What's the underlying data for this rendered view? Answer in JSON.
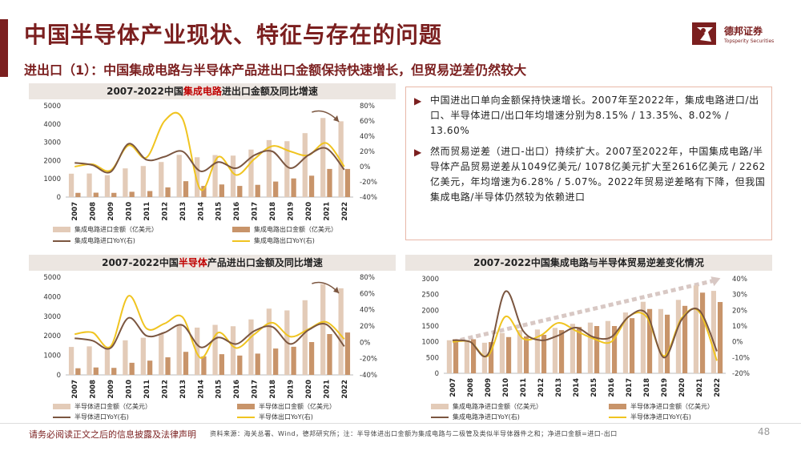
{
  "header": {
    "title": "中国半导体产业现状、特征与存在的问题",
    "subtitle": "进出口（1）：中国集成电路与半导体产品进出口金额保持快速增长，但贸易逆差仍然较大"
  },
  "logo": {
    "cn": "德邦证券",
    "en": "Topsperity Securities"
  },
  "colors": {
    "brand": "#7b1f1f",
    "import_bar": "#e3cbb8",
    "export_bar": "#c8946a",
    "import_line": "#7b5640",
    "export_line": "#f0c420",
    "title_bg": "#ece6e1"
  },
  "text_box": {
    "p1": "中国进出口单向金额保持快速增长。2007年至2022年，集成电路进口/出口、半导体进口/出口年均增速分别为8.15% / 13.35%、8.02% / 13.60%",
    "p2": "然而贸易逆差（进口-出口）持续扩大。2007至2022年，中国集成电路/半导体产品贸易逆差从1049亿美元/ 1078亿美元扩大至2616亿美元 / 2262亿美元，年均增速为6.28% / 5.07%。2022年贸易逆差略有下降，但我国集成电路/半导体仍然较为依赖进口"
  },
  "footer": {
    "disclaimer": "请务必阅读正文之后的信息披露及法律声明",
    "source": "资料来源：海关总署、Wind，德邦研究所；注：半导体进出口金额为集成电路与二极管及类似半导体器件之和；净进口金额=进口-出口",
    "page": "48"
  },
  "chart_data": [
    {
      "type": "bar",
      "title_pre": "2007-2022中国",
      "title_hl": "集成电路",
      "title_post": "进出口金额及同比增速",
      "categories": [
        "2007",
        "2008",
        "2009",
        "2010",
        "2011",
        "2012",
        "2013",
        "2014",
        "2015",
        "2016",
        "2017",
        "2018",
        "2019",
        "2020",
        "2021",
        "2022"
      ],
      "ylim": [
        0,
        5000
      ],
      "yticks": [
        "0",
        "1000",
        "2000",
        "3000",
        "4000",
        "5000"
      ],
      "y2lim": [
        -40,
        80
      ],
      "y2ticks": [
        "-40%",
        "-20%",
        "0%",
        "20%",
        "40%",
        "60%",
        "80%"
      ],
      "series": [
        {
          "name": "集成电路进口金额（亿美元）",
          "kind": "bar",
          "values": [
            1280,
            1290,
            1200,
            1570,
            1700,
            1920,
            2310,
            2180,
            2300,
            2270,
            2600,
            3120,
            3060,
            3500,
            4330,
            4150
          ]
        },
        {
          "name": "集成电路出口金额（亿美元）",
          "kind": "bar",
          "values": [
            230,
            240,
            230,
            290,
            330,
            530,
            870,
            610,
            690,
            610,
            670,
            850,
            1020,
            1170,
            1540,
            1540
          ]
        },
        {
          "name": "集成电路进口YoY(右)",
          "kind": "line",
          "axis": "right",
          "values": [
            5,
            2,
            -7,
            30,
            9,
            13,
            20,
            -6,
            6,
            -2,
            15,
            20,
            -2,
            15,
            24,
            -4
          ]
        },
        {
          "name": "集成电路出口YoY(右)",
          "kind": "line",
          "axis": "right",
          "values": [
            0,
            3,
            -5,
            28,
            12,
            60,
            63,
            -30,
            13,
            -11,
            10,
            27,
            20,
            15,
            31,
            0
          ]
        }
      ]
    },
    {
      "type": "bar",
      "title_pre": "2007-2022中国",
      "title_hl": "半导体",
      "title_post": "产品进出口金额及同比增速",
      "categories": [
        "2007",
        "2008",
        "2009",
        "2010",
        "2011",
        "2012",
        "2013",
        "2014",
        "2015",
        "2016",
        "2017",
        "2018",
        "2019",
        "2020",
        "2021",
        "2022"
      ],
      "ylim": [
        0,
        5000
      ],
      "yticks": [
        "0",
        "1000",
        "2000",
        "3000",
        "4000",
        "5000"
      ],
      "y2lim": [
        -40,
        80
      ],
      "y2ticks": [
        "-40%",
        "-20%",
        "0%",
        "20%",
        "40%",
        "60%",
        "80%"
      ],
      "series": [
        {
          "name": "半导体进口金额（亿美元）",
          "kind": "bar",
          "values": [
            1430,
            1460,
            1350,
            1770,
            1900,
            2120,
            2550,
            2420,
            2560,
            2490,
            2840,
            3390,
            3300,
            3820,
            4650,
            4430
          ]
        },
        {
          "name": "半导体出口金额（亿美元）",
          "kind": "bar",
          "values": [
            340,
            380,
            360,
            620,
            730,
            900,
            1180,
            950,
            1060,
            990,
            1090,
            1350,
            1440,
            1680,
            2090,
            2170
          ]
        },
        {
          "name": "半导体进口YoY(右)",
          "kind": "line",
          "axis": "right",
          "values": [
            5,
            2,
            -7,
            30,
            8,
            12,
            21,
            -6,
            6,
            -2,
            14,
            19,
            -2,
            15,
            22,
            -5
          ]
        },
        {
          "name": "半导体出口YoY(右)",
          "kind": "line",
          "axis": "right",
          "values": [
            10,
            12,
            -5,
            57,
            17,
            23,
            31,
            -19,
            12,
            -7,
            10,
            24,
            7,
            16,
            25,
            4
          ]
        }
      ]
    },
    {
      "type": "bar",
      "title_pre": "2007-2022中国集成电路与半导体贸易逆差变化情况",
      "title_hl": "",
      "title_post": "",
      "categories": [
        "2007",
        "2008",
        "2009",
        "2010",
        "2011",
        "2012",
        "2013",
        "2014",
        "2015",
        "2016",
        "2017",
        "2018",
        "2019",
        "2020",
        "2021",
        "2022"
      ],
      "ylim": [
        0,
        3000
      ],
      "yticks": [
        "0",
        "500",
        "1000",
        "1500",
        "2000",
        "2500",
        "3000"
      ],
      "y2lim": [
        -20,
        40
      ],
      "y2ticks": [
        "-20%",
        "-10%",
        "0%",
        "10%",
        "20%",
        "30%",
        "40%"
      ],
      "series": [
        {
          "name": "集成电路净进口金额（亿美元）",
          "kind": "bar",
          "values": [
            1049,
            1049,
            970,
            1280,
            1370,
            1390,
            1440,
            1570,
            1610,
            1660,
            1930,
            2270,
            2040,
            2330,
            2790,
            2616
          ]
        },
        {
          "name": "半导体净进口金额（亿美元）",
          "kind": "bar",
          "values": [
            1078,
            1080,
            990,
            1150,
            1170,
            1220,
            1370,
            1470,
            1500,
            1500,
            1750,
            2040,
            1860,
            2140,
            2560,
            2262
          ]
        },
        {
          "name": "集成电路净进口YoY(右)",
          "kind": "line",
          "axis": "right",
          "values": [
            1,
            0,
            -8,
            32,
            7,
            1,
            4,
            9,
            3,
            3,
            16,
            18,
            -10,
            14,
            20,
            -6
          ]
        },
        {
          "name": "半导体净进口YoY(右)",
          "kind": "line",
          "axis": "right",
          "values": [
            0,
            0,
            -9,
            16,
            2,
            4,
            12,
            7,
            2,
            0,
            16,
            16,
            -9,
            15,
            19,
            -12
          ]
        }
      ]
    }
  ]
}
